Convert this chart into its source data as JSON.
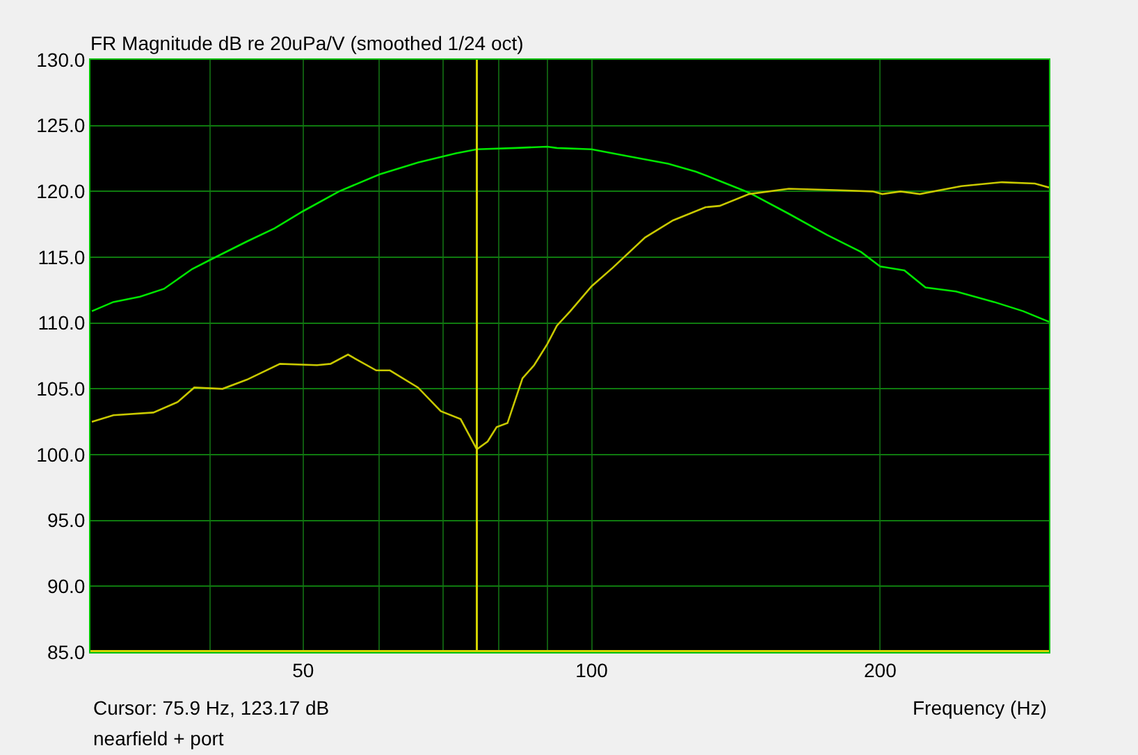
{
  "chart_data": {
    "type": "line",
    "title": "FR Magnitude dB re 20uPa/V (smoothed 1/24 oct)",
    "xlabel": "Frequency (Hz)",
    "annotations": [
      "Cursor: 75.9 Hz, 123.17 dB",
      "nearfield + port"
    ],
    "log": "x",
    "grid": true,
    "marker": "none",
    "line_style": "solid",
    "xlim": [
      30,
      300
    ],
    "xticks": [
      {
        "value": 40,
        "label": null
      },
      50,
      {
        "value": 60,
        "label": null
      },
      {
        "value": 70,
        "label": null
      },
      {
        "value": 80,
        "label": null
      },
      {
        "value": 90,
        "label": null
      },
      100,
      200
    ],
    "ylim": [
      85,
      130
    ],
    "yticks": [
      {
        "value": 85,
        "label": "85.0"
      },
      {
        "value": 90,
        "label": "90.0"
      },
      {
        "value": 95,
        "label": "95.0"
      },
      {
        "value": 100,
        "label": "100.0"
      },
      {
        "value": 105,
        "label": "105.0"
      },
      {
        "value": 110,
        "label": "110.0"
      },
      {
        "value": 115,
        "label": "115.0"
      },
      {
        "value": 120,
        "label": "120.0"
      },
      {
        "value": 125,
        "label": "125.0"
      },
      {
        "value": 130,
        "label": "130.0"
      }
    ],
    "ref_lines": [
      {
        "axis": "x",
        "value": 75.9,
        "label": null,
        "color": "#d2d200"
      },
      {
        "axis": "y",
        "value": 85,
        "label": null,
        "color": "#d2d200"
      }
    ],
    "series": [
      {
        "color": "#00e600",
        "x": [
          30.1,
          31.7,
          33.8,
          35.8,
          38.3,
          40,
          43.7,
          46.7,
          50,
          54.5,
          60.1,
          65.9,
          72.2,
          75.9,
          83.3,
          89.9,
          92,
          100,
          108.7,
          120.2,
          128.5,
          136,
          146,
          160.6,
          176,
          191,
          200,
          212,
          223,
          240,
          263,
          282,
          300
        ],
        "values": [
          110.9,
          111.6,
          112.0,
          112.6,
          114.1,
          114.8,
          116.2,
          117.2,
          118.5,
          120.0,
          121.3,
          122.2,
          122.9,
          123.2,
          123.3,
          123.4,
          123.3,
          123.2,
          122.7,
          122.1,
          121.5,
          120.8,
          119.9,
          118.3,
          116.7,
          115.4,
          114.3,
          114.0,
          112.7,
          112.4,
          111.6,
          110.9,
          110.1
        ]
      },
      {
        "color": "#c8c800",
        "x": [
          30.1,
          31.7,
          34.9,
          37,
          38.5,
          41.2,
          43.7,
          47.3,
          51.7,
          53.4,
          55.7,
          59.6,
          61.6,
          65.9,
          69.6,
          73,
          75.9,
          77.9,
          79.6,
          81.7,
          84.7,
          87.1,
          89.9,
          92,
          95,
          100,
          105.2,
          113.7,
          121.6,
          131.5,
          136,
          146,
          160.6,
          179.8,
          196.4,
          201,
          210,
          220,
          243,
          268,
          290,
          300
        ],
        "values": [
          102.5,
          103.0,
          103.2,
          104.0,
          105.1,
          105.0,
          105.7,
          106.9,
          106.8,
          106.9,
          107.6,
          106.4,
          106.4,
          105.1,
          103.3,
          102.7,
          100.4,
          101.0,
          102.1,
          102.4,
          105.8,
          106.8,
          108.4,
          109.8,
          110.9,
          112.8,
          114.2,
          116.5,
          117.8,
          118.8,
          118.9,
          119.8,
          120.2,
          120.1,
          120.0,
          119.8,
          120.0,
          119.8,
          120.4,
          120.7,
          120.6,
          120.3
        ]
      }
    ]
  }
}
